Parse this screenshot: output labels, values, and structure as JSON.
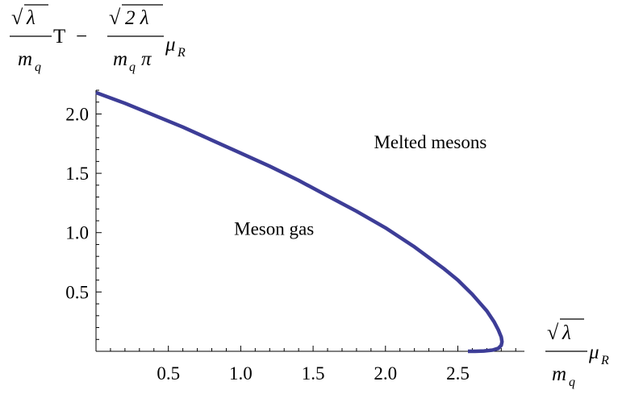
{
  "chart_data": {
    "type": "line",
    "title": "",
    "xlabel": {
      "sqrt_symbol": "√",
      "numerator": "λ",
      "denominator_base": "m",
      "denominator_sub": "q",
      "factor_base": "μ",
      "factor_sub": "R"
    },
    "ylabel": {
      "term1_sqrt_symbol": "√",
      "term1_numerator": "λ",
      "term1_denominator_base": "m",
      "term1_denominator_sub": "q",
      "term1_factor": "T",
      "minus": "−",
      "term2_sqrt_symbol": "√",
      "term2_numerator": "2 λ",
      "term2_denominator_base": "m",
      "term2_denominator_sub": "q",
      "term2_denominator_pi": "π",
      "term2_factor_base": "μ",
      "term2_factor_sub": "R"
    },
    "xlim": [
      0,
      2.96
    ],
    "ylim": [
      0,
      2.2
    ],
    "x_ticks": [
      0.5,
      1.0,
      1.5,
      2.0,
      2.5
    ],
    "x_tick_labels": [
      "0.5",
      "1.0",
      "1.5",
      "2.0",
      "2.5"
    ],
    "y_ticks": [
      0.5,
      1.0,
      1.5,
      2.0
    ],
    "y_tick_labels": [
      "0.5",
      "1.0",
      "1.5",
      "2.0"
    ],
    "grid": false,
    "series": [
      {
        "color": "#3d3d97",
        "x": [
          0.0,
          0.2,
          0.4,
          0.6,
          0.8,
          1.0,
          1.2,
          1.4,
          1.6,
          1.8,
          2.0,
          2.2,
          2.4,
          2.5,
          2.6,
          2.7,
          2.75,
          2.78,
          2.8,
          2.805,
          2.8,
          2.78,
          2.74,
          2.68,
          2.62,
          2.57
        ],
        "y": [
          2.18,
          2.09,
          1.99,
          1.89,
          1.78,
          1.67,
          1.56,
          1.44,
          1.31,
          1.18,
          1.04,
          0.88,
          0.7,
          0.6,
          0.48,
          0.34,
          0.25,
          0.18,
          0.12,
          0.08,
          0.05,
          0.025,
          0.01,
          0.003,
          0.0,
          0.0
        ]
      }
    ],
    "annotations": [
      {
        "text": "Melted mesons",
        "x": 2.31,
        "y": 1.71
      },
      {
        "text": "Meson gas",
        "x": 1.23,
        "y": 0.98
      }
    ]
  }
}
